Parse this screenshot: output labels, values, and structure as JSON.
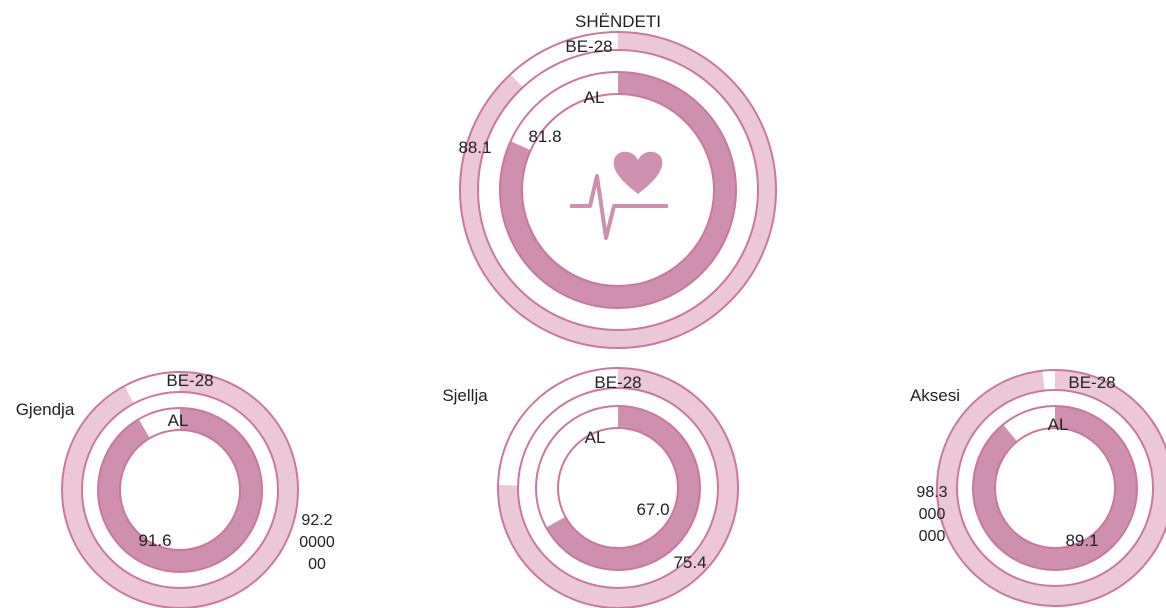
{
  "chart_data": [
    {
      "type": "radial",
      "title": "SHËNDETI",
      "series": [
        {
          "name": "BE-28",
          "color": "#ecc7d6",
          "values": [
            88.1
          ]
        },
        {
          "name": "AL",
          "color": "#cf8fae",
          "values": [
            81.8
          ]
        }
      ]
    },
    {
      "type": "radial",
      "title": "Gjendja",
      "series": [
        {
          "name": "BE-28",
          "color": "#ecc7d6",
          "values": [
            92.2
          ],
          "value_labels": [
            "92.2000000"
          ]
        },
        {
          "name": "AL",
          "color": "#cf8fae",
          "values": [
            91.6
          ]
        }
      ]
    },
    {
      "type": "radial",
      "title": "Sjellja",
      "series": [
        {
          "name": "BE-28",
          "color": "#ecc7d6",
          "values": [
            75.4
          ]
        },
        {
          "name": "AL",
          "color": "#cf8fae",
          "values": [
            67.0
          ],
          "value_labels": [
            "67.0"
          ]
        }
      ]
    },
    {
      "type": "radial",
      "title": "Aksesi",
      "series": [
        {
          "name": "BE-28",
          "color": "#ecc7d6",
          "values": [
            98.3
          ],
          "value_labels": [
            "98.3000000"
          ]
        },
        {
          "name": "AL",
          "color": "#cf8fae",
          "values": [
            89.1
          ]
        }
      ]
    }
  ]
}
